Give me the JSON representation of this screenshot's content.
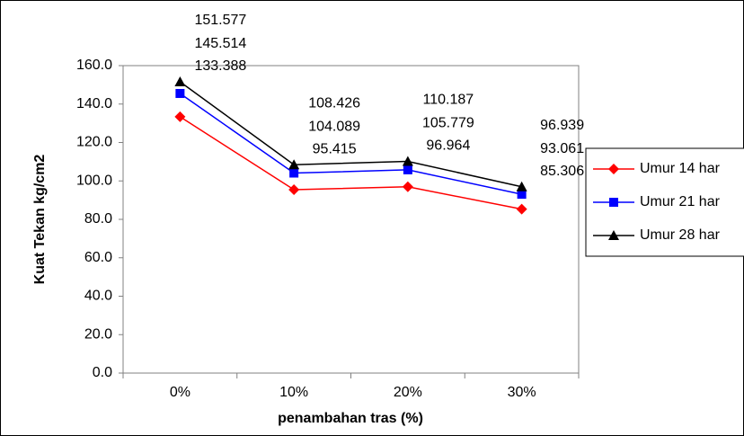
{
  "chart_data": {
    "type": "line",
    "categories": [
      "0%",
      "10%",
      "20%",
      "30%"
    ],
    "series": [
      {
        "name": "Umur 14 har",
        "color": "#ff0000",
        "values": [
          133.388,
          95.415,
          96.964,
          85.306
        ]
      },
      {
        "name": "Umur 21 har",
        "color": "#0000ff",
        "values": [
          145.514,
          104.089,
          105.779,
          93.061
        ]
      },
      {
        "name": "Umur 28 har",
        "color": "#000000",
        "values": [
          151.577,
          108.426,
          110.187,
          96.939
        ]
      }
    ],
    "ylim": [
      0,
      160
    ],
    "yticks": [
      {
        "value": 0,
        "label": "0.0"
      },
      {
        "value": 20,
        "label": "20.0"
      },
      {
        "value": 40,
        "label": "40.0"
      },
      {
        "value": 60,
        "label": "60.0"
      },
      {
        "value": 80,
        "label": "80.0"
      },
      {
        "value": 100,
        "label": "100.0"
      },
      {
        "value": 120,
        "label": "120.0"
      },
      {
        "value": 140,
        "label": "140.0"
      },
      {
        "value": 160,
        "label": "160.0"
      }
    ],
    "x_label": "penambahan tras (%)",
    "y_label": "Kuat Tekan kg/cm2",
    "grid": false,
    "legend": "right"
  }
}
